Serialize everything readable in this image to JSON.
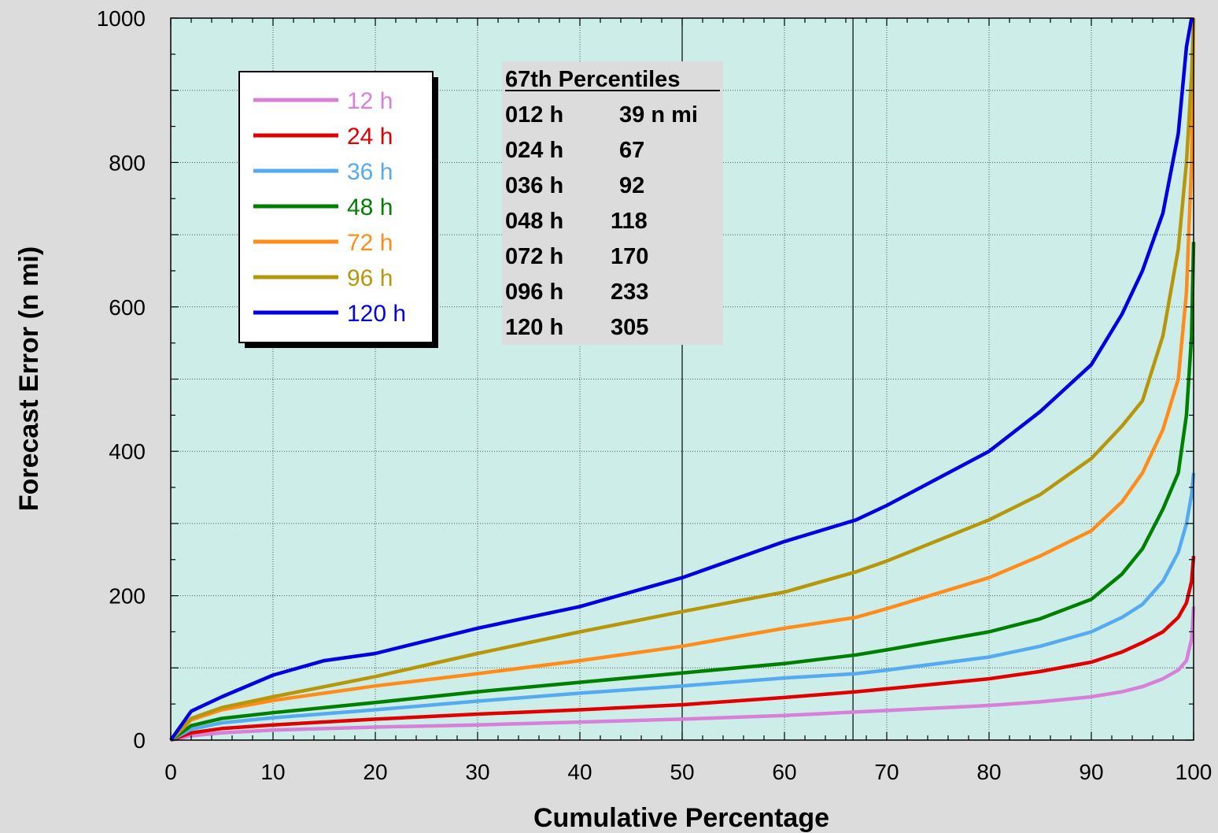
{
  "chart_data": {
    "type": "line",
    "title": "",
    "xlabel": "Cumulative Percentage",
    "ylabel": "Forecast Error (n mi)",
    "xlim": [
      0,
      100
    ],
    "ylim": [
      0,
      1000
    ],
    "x_ticks": [
      "0",
      "10",
      "20",
      "30",
      "40",
      "50",
      "60",
      "70",
      "80",
      "90",
      "100"
    ],
    "y_ticks": [
      "0",
      "200",
      "400",
      "600",
      "800",
      "1000"
    ],
    "grid": true,
    "reference_lines_x": [
      50,
      66.7
    ],
    "legend_position": "top-left",
    "series": [
      {
        "name": "12 h",
        "color": "#d87fd8",
        "x": [
          0,
          2,
          5,
          10,
          20,
          30,
          40,
          50,
          60,
          67,
          70,
          80,
          85,
          90,
          93,
          95,
          97,
          98.5,
          99.3,
          99.8,
          100
        ],
        "y": [
          0,
          6,
          10,
          14,
          18,
          21,
          25,
          29,
          34,
          39,
          41,
          48,
          53,
          60,
          67,
          74,
          85,
          97,
          110,
          140,
          185
        ]
      },
      {
        "name": "24 h",
        "color": "#e00000",
        "x": [
          0,
          2,
          5,
          10,
          20,
          30,
          40,
          50,
          60,
          67,
          70,
          80,
          85,
          90,
          93,
          95,
          97,
          98.5,
          99.3,
          99.8,
          100
        ],
        "y": [
          0,
          10,
          16,
          21,
          29,
          36,
          42,
          49,
          59,
          67,
          71,
          85,
          95,
          108,
          122,
          135,
          150,
          170,
          190,
          220,
          255
        ]
      },
      {
        "name": "36 h",
        "color": "#55aaf0",
        "x": [
          0,
          2,
          5,
          10,
          20,
          30,
          40,
          50,
          60,
          67,
          70,
          80,
          85,
          90,
          93,
          95,
          97,
          98.5,
          99.3,
          99.8,
          100
        ],
        "y": [
          0,
          15,
          24,
          31,
          42,
          54,
          65,
          75,
          86,
          92,
          97,
          115,
          130,
          150,
          170,
          188,
          220,
          260,
          300,
          340,
          370
        ]
      },
      {
        "name": "48 h",
        "color": "#008000",
        "x": [
          0,
          2,
          5,
          10,
          20,
          30,
          40,
          50,
          60,
          67,
          70,
          80,
          85,
          90,
          93,
          95,
          97,
          98.5,
          99.3,
          99.8,
          100
        ],
        "y": [
          0,
          20,
          30,
          38,
          52,
          67,
          80,
          93,
          106,
          118,
          125,
          150,
          168,
          195,
          230,
          265,
          320,
          370,
          450,
          560,
          690
        ]
      },
      {
        "name": "72 h",
        "color": "#ff8c1a",
        "x": [
          0,
          2,
          5,
          10,
          20,
          30,
          40,
          50,
          60,
          67,
          70,
          80,
          85,
          90,
          93,
          95,
          97,
          98.5,
          99.3,
          99.8,
          100
        ],
        "y": [
          0,
          28,
          42,
          55,
          75,
          92,
          110,
          130,
          155,
          170,
          182,
          225,
          255,
          290,
          330,
          370,
          430,
          500,
          620,
          800,
          1000
        ]
      },
      {
        "name": "96 h",
        "color": "#b8960c",
        "x": [
          0,
          2,
          5,
          10,
          20,
          30,
          40,
          50,
          60,
          67,
          70,
          80,
          85,
          90,
          93,
          95,
          97,
          98.5,
          99.3,
          99.8,
          100
        ],
        "y": [
          0,
          30,
          45,
          60,
          88,
          120,
          150,
          178,
          205,
          233,
          248,
          305,
          340,
          390,
          435,
          470,
          560,
          680,
          800,
          920,
          1000
        ]
      },
      {
        "name": "120 h",
        "color": "#0000e0",
        "x": [
          0,
          2,
          5,
          10,
          15,
          20,
          30,
          40,
          50,
          60,
          67,
          70,
          80,
          85,
          90,
          93,
          95,
          97,
          98.5,
          99.3,
          99.8
        ],
        "y": [
          0,
          40,
          60,
          90,
          110,
          120,
          155,
          185,
          225,
          275,
          305,
          325,
          400,
          455,
          520,
          590,
          650,
          730,
          840,
          960,
          1000
        ]
      }
    ]
  },
  "percentile_table": {
    "title": "67th Percentiles",
    "rows": [
      {
        "lead": "012 h",
        "value": "39 n mi"
      },
      {
        "lead": "024 h",
        "value": "67"
      },
      {
        "lead": "036 h",
        "value": "92"
      },
      {
        "lead": "048 h",
        "value": "118"
      },
      {
        "lead": "072 h",
        "value": "170"
      },
      {
        "lead": "096 h",
        "value": "233"
      },
      {
        "lead": "120 h",
        "value": "305"
      }
    ]
  }
}
